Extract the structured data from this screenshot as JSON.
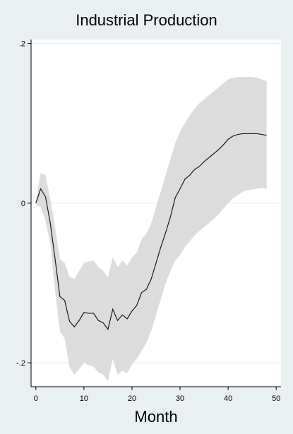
{
  "chart_data": {
    "type": "line",
    "title": "Industrial Production",
    "xlabel": "Month",
    "ylabel": "",
    "xlim": [
      -1,
      51
    ],
    "ylim": [
      -0.23,
      0.205
    ],
    "x_ticks": [
      0,
      10,
      20,
      30,
      40,
      50
    ],
    "x_tick_labels": [
      "0",
      "10",
      "20",
      "30",
      "40",
      "50"
    ],
    "y_ticks": [
      0.2,
      0,
      -0.2
    ],
    "y_tick_labels": [
      ".2",
      "0",
      "-.2"
    ],
    "grid": "horizontal",
    "legend": "none",
    "colors": {
      "background": "#eaeff2",
      "plot_background": "#ffffff",
      "band": "#dcdcdc",
      "line": "#1a1a1a",
      "grid": "#e3e8eb"
    },
    "series": [
      {
        "type": "line",
        "x": [
          0,
          1,
          2,
          3,
          4,
          5,
          6,
          7,
          8,
          9,
          10,
          11,
          12,
          13,
          14,
          15,
          16,
          17,
          18,
          19,
          20,
          21,
          22,
          23,
          24,
          25,
          26,
          27,
          28,
          29,
          30,
          31,
          32,
          33,
          34,
          35,
          36,
          37,
          38,
          39,
          40,
          41,
          42,
          43,
          44,
          45,
          46,
          47,
          48
        ],
        "y": [
          0,
          0.018,
          0.008,
          -0.025,
          -0.07,
          -0.117,
          -0.122,
          -0.148,
          -0.155,
          -0.147,
          -0.137,
          -0.138,
          -0.138,
          -0.147,
          -0.15,
          -0.158,
          -0.133,
          -0.147,
          -0.14,
          -0.145,
          -0.135,
          -0.128,
          -0.112,
          -0.108,
          -0.095,
          -0.075,
          -0.055,
          -0.037,
          -0.017,
          0.007,
          0.018,
          0.03,
          0.035,
          0.042,
          0.046,
          0.052,
          0.057,
          0.062,
          0.067,
          0.073,
          0.08,
          0.084,
          0.086,
          0.087,
          0.087,
          0.087,
          0.087,
          0.086,
          0.085
        ]
      },
      {
        "type": "area",
        "x": [
          0,
          1,
          2,
          3,
          4,
          5,
          6,
          7,
          8,
          9,
          10,
          11,
          12,
          13,
          14,
          15,
          16,
          17,
          18,
          19,
          20,
          21,
          22,
          23,
          24,
          25,
          26,
          27,
          28,
          29,
          30,
          31,
          32,
          33,
          34,
          35,
          36,
          37,
          38,
          39,
          40,
          41,
          42,
          43,
          44,
          45,
          46,
          47,
          48
        ],
        "lower": [
          -0.002,
          -0.005,
          -0.022,
          -0.05,
          -0.11,
          -0.16,
          -0.17,
          -0.205,
          -0.215,
          -0.208,
          -0.2,
          -0.203,
          -0.205,
          -0.212,
          -0.215,
          -0.223,
          -0.195,
          -0.215,
          -0.21,
          -0.213,
          -0.202,
          -0.195,
          -0.185,
          -0.175,
          -0.16,
          -0.14,
          -0.12,
          -0.1,
          -0.085,
          -0.072,
          -0.065,
          -0.055,
          -0.048,
          -0.04,
          -0.035,
          -0.03,
          -0.025,
          -0.02,
          -0.014,
          -0.007,
          0,
          0.006,
          0.01,
          0.014,
          0.016,
          0.017,
          0.018,
          0.019,
          0.018
        ],
        "upper": [
          0.002,
          0.038,
          0.035,
          0.005,
          -0.03,
          -0.07,
          -0.075,
          -0.092,
          -0.095,
          -0.085,
          -0.075,
          -0.073,
          -0.072,
          -0.08,
          -0.085,
          -0.093,
          -0.068,
          -0.08,
          -0.072,
          -0.078,
          -0.068,
          -0.062,
          -0.045,
          -0.038,
          -0.025,
          -0.005,
          0.015,
          0.035,
          0.055,
          0.075,
          0.09,
          0.1,
          0.11,
          0.118,
          0.125,
          0.13,
          0.135,
          0.14,
          0.145,
          0.15,
          0.155,
          0.157,
          0.158,
          0.158,
          0.158,
          0.158,
          0.157,
          0.155,
          0.153
        ]
      }
    ]
  }
}
